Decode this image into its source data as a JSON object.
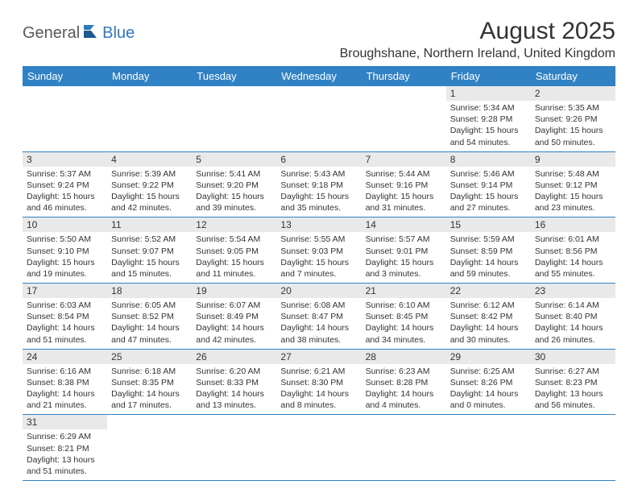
{
  "logo": {
    "general": "General",
    "blue": "Blue"
  },
  "title": "August 2025",
  "location": "Broughshane, Northern Ireland, United Kingdom",
  "colors": {
    "header_bg": "#3082c4",
    "header_text": "#ffffff",
    "daynum_bg": "#e9e9e9",
    "border": "#3082c4",
    "logo_blue": "#2f78bd",
    "logo_gray": "#58595b"
  },
  "weekdays": [
    "Sunday",
    "Monday",
    "Tuesday",
    "Wednesday",
    "Thursday",
    "Friday",
    "Saturday"
  ],
  "days": [
    {
      "n": 1,
      "sunrise": "5:34 AM",
      "sunset": "9:28 PM",
      "daylight": "15 hours and 54 minutes."
    },
    {
      "n": 2,
      "sunrise": "5:35 AM",
      "sunset": "9:26 PM",
      "daylight": "15 hours and 50 minutes."
    },
    {
      "n": 3,
      "sunrise": "5:37 AM",
      "sunset": "9:24 PM",
      "daylight": "15 hours and 46 minutes."
    },
    {
      "n": 4,
      "sunrise": "5:39 AM",
      "sunset": "9:22 PM",
      "daylight": "15 hours and 42 minutes."
    },
    {
      "n": 5,
      "sunrise": "5:41 AM",
      "sunset": "9:20 PM",
      "daylight": "15 hours and 39 minutes."
    },
    {
      "n": 6,
      "sunrise": "5:43 AM",
      "sunset": "9:18 PM",
      "daylight": "15 hours and 35 minutes."
    },
    {
      "n": 7,
      "sunrise": "5:44 AM",
      "sunset": "9:16 PM",
      "daylight": "15 hours and 31 minutes."
    },
    {
      "n": 8,
      "sunrise": "5:46 AM",
      "sunset": "9:14 PM",
      "daylight": "15 hours and 27 minutes."
    },
    {
      "n": 9,
      "sunrise": "5:48 AM",
      "sunset": "9:12 PM",
      "daylight": "15 hours and 23 minutes."
    },
    {
      "n": 10,
      "sunrise": "5:50 AM",
      "sunset": "9:10 PM",
      "daylight": "15 hours and 19 minutes."
    },
    {
      "n": 11,
      "sunrise": "5:52 AM",
      "sunset": "9:07 PM",
      "daylight": "15 hours and 15 minutes."
    },
    {
      "n": 12,
      "sunrise": "5:54 AM",
      "sunset": "9:05 PM",
      "daylight": "15 hours and 11 minutes."
    },
    {
      "n": 13,
      "sunrise": "5:55 AM",
      "sunset": "9:03 PM",
      "daylight": "15 hours and 7 minutes."
    },
    {
      "n": 14,
      "sunrise": "5:57 AM",
      "sunset": "9:01 PM",
      "daylight": "15 hours and 3 minutes."
    },
    {
      "n": 15,
      "sunrise": "5:59 AM",
      "sunset": "8:59 PM",
      "daylight": "14 hours and 59 minutes."
    },
    {
      "n": 16,
      "sunrise": "6:01 AM",
      "sunset": "8:56 PM",
      "daylight": "14 hours and 55 minutes."
    },
    {
      "n": 17,
      "sunrise": "6:03 AM",
      "sunset": "8:54 PM",
      "daylight": "14 hours and 51 minutes."
    },
    {
      "n": 18,
      "sunrise": "6:05 AM",
      "sunset": "8:52 PM",
      "daylight": "14 hours and 47 minutes."
    },
    {
      "n": 19,
      "sunrise": "6:07 AM",
      "sunset": "8:49 PM",
      "daylight": "14 hours and 42 minutes."
    },
    {
      "n": 20,
      "sunrise": "6:08 AM",
      "sunset": "8:47 PM",
      "daylight": "14 hours and 38 minutes."
    },
    {
      "n": 21,
      "sunrise": "6:10 AM",
      "sunset": "8:45 PM",
      "daylight": "14 hours and 34 minutes."
    },
    {
      "n": 22,
      "sunrise": "6:12 AM",
      "sunset": "8:42 PM",
      "daylight": "14 hours and 30 minutes."
    },
    {
      "n": 23,
      "sunrise": "6:14 AM",
      "sunset": "8:40 PM",
      "daylight": "14 hours and 26 minutes."
    },
    {
      "n": 24,
      "sunrise": "6:16 AM",
      "sunset": "8:38 PM",
      "daylight": "14 hours and 21 minutes."
    },
    {
      "n": 25,
      "sunrise": "6:18 AM",
      "sunset": "8:35 PM",
      "daylight": "14 hours and 17 minutes."
    },
    {
      "n": 26,
      "sunrise": "6:20 AM",
      "sunset": "8:33 PM",
      "daylight": "14 hours and 13 minutes."
    },
    {
      "n": 27,
      "sunrise": "6:21 AM",
      "sunset": "8:30 PM",
      "daylight": "14 hours and 8 minutes."
    },
    {
      "n": 28,
      "sunrise": "6:23 AM",
      "sunset": "8:28 PM",
      "daylight": "14 hours and 4 minutes."
    },
    {
      "n": 29,
      "sunrise": "6:25 AM",
      "sunset": "8:26 PM",
      "daylight": "14 hours and 0 minutes."
    },
    {
      "n": 30,
      "sunrise": "6:27 AM",
      "sunset": "8:23 PM",
      "daylight": "13 hours and 56 minutes."
    },
    {
      "n": 31,
      "sunrise": "6:29 AM",
      "sunset": "8:21 PM",
      "daylight": "13 hours and 51 minutes."
    }
  ],
  "first_weekday_index": 5,
  "labels": {
    "sunrise": "Sunrise:",
    "sunset": "Sunset:",
    "daylight": "Daylight:"
  }
}
